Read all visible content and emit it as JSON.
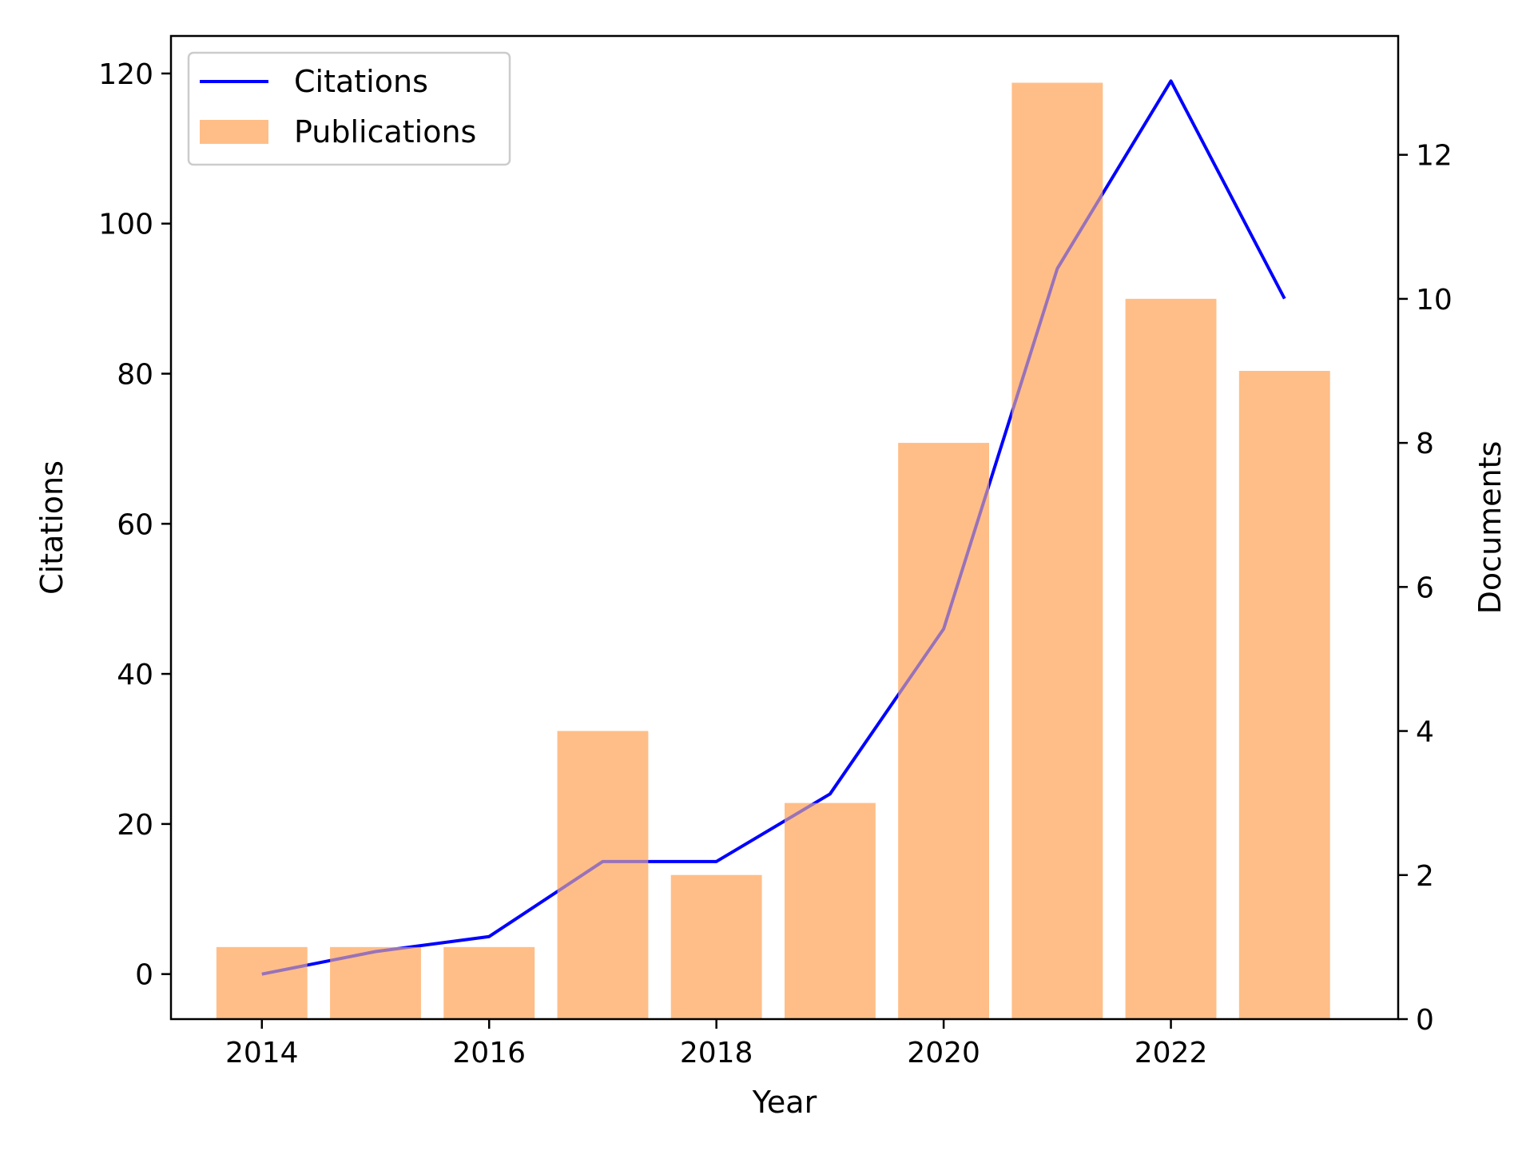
{
  "chart_data": {
    "type": "bar",
    "xlabel": "Year",
    "ylabel": "Citations",
    "y2label": "Documents",
    "x": [
      2014,
      2015,
      2016,
      2017,
      2018,
      2019,
      2020,
      2021,
      2022,
      2023
    ],
    "xticks": [
      2014,
      2016,
      2018,
      2020,
      2022
    ],
    "xlim": [
      2013.2,
      2024.0
    ],
    "ylim": [
      -6,
      125
    ],
    "yticks": [
      0,
      20,
      40,
      60,
      80,
      100,
      120
    ],
    "y2lim": [
      0,
      13.65
    ],
    "y2ticks": [
      0,
      2,
      4,
      6,
      8,
      10,
      12
    ],
    "grid": false,
    "legend": "top-left",
    "series": [
      {
        "name": "Citations",
        "kind": "line",
        "axis": "left",
        "color": "#0000ff",
        "values": [
          0,
          3,
          5,
          15,
          15,
          24,
          46,
          94,
          119,
          90
        ]
      },
      {
        "name": "Publications",
        "kind": "bar",
        "axis": "right",
        "color": "#ffbe88",
        "values": [
          1,
          1,
          1,
          4,
          2,
          3,
          8,
          13,
          10,
          9
        ]
      }
    ]
  }
}
